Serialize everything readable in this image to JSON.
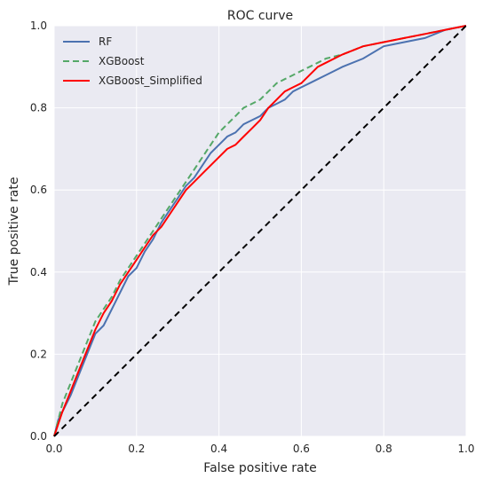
{
  "chart_data": {
    "type": "line",
    "title": "ROC curve",
    "xlabel": "False positive rate",
    "ylabel": "True positive rate",
    "xlim": [
      0,
      1
    ],
    "ylim": [
      0,
      1
    ],
    "xticks": [
      "0.0",
      "0.2",
      "0.4",
      "0.6",
      "0.8",
      "1.0"
    ],
    "yticks": [
      "0.0",
      "0.2",
      "0.4",
      "0.6",
      "0.8",
      "1.0"
    ],
    "grid": true,
    "legend_position": "top-left",
    "background": "#EAEAF2",
    "series": [
      {
        "name": "RF",
        "color": "#4C72B0",
        "dash": "solid",
        "x": [
          0,
          0.01,
          0.02,
          0.04,
          0.06,
          0.08,
          0.1,
          0.12,
          0.14,
          0.16,
          0.18,
          0.2,
          0.22,
          0.24,
          0.26,
          0.28,
          0.3,
          0.32,
          0.34,
          0.36,
          0.38,
          0.4,
          0.42,
          0.44,
          0.46,
          0.48,
          0.5,
          0.52,
          0.54,
          0.56,
          0.58,
          0.6,
          0.62,
          0.64,
          0.66,
          0.7,
          0.75,
          0.8,
          0.85,
          0.9,
          0.95,
          1.0
        ],
        "y": [
          0,
          0.04,
          0.06,
          0.1,
          0.15,
          0.2,
          0.25,
          0.27,
          0.31,
          0.35,
          0.39,
          0.41,
          0.45,
          0.48,
          0.52,
          0.55,
          0.58,
          0.61,
          0.63,
          0.66,
          0.69,
          0.71,
          0.73,
          0.74,
          0.76,
          0.77,
          0.78,
          0.8,
          0.81,
          0.82,
          0.84,
          0.85,
          0.86,
          0.87,
          0.88,
          0.9,
          0.92,
          0.95,
          0.96,
          0.97,
          0.99,
          1.0
        ]
      },
      {
        "name": "XGBoost",
        "color": "#55A868",
        "dash": "dashed",
        "x": [
          0,
          0.01,
          0.02,
          0.04,
          0.06,
          0.08,
          0.1,
          0.12,
          0.14,
          0.16,
          0.18,
          0.2,
          0.22,
          0.24,
          0.26,
          0.28,
          0.3,
          0.32,
          0.34,
          0.36,
          0.38,
          0.4,
          0.42,
          0.44,
          0.46,
          0.48,
          0.5,
          0.52,
          0.54,
          0.56,
          0.58,
          0.6,
          0.62,
          0.64,
          0.66,
          0.7,
          0.75,
          0.8,
          0.85,
          0.9,
          0.95,
          1.0
        ],
        "y": [
          0,
          0.04,
          0.08,
          0.13,
          0.18,
          0.23,
          0.28,
          0.31,
          0.34,
          0.38,
          0.41,
          0.44,
          0.47,
          0.5,
          0.53,
          0.56,
          0.59,
          0.62,
          0.65,
          0.68,
          0.71,
          0.74,
          0.76,
          0.78,
          0.8,
          0.81,
          0.82,
          0.84,
          0.86,
          0.87,
          0.88,
          0.89,
          0.9,
          0.91,
          0.92,
          0.93,
          0.95,
          0.96,
          0.97,
          0.98,
          0.99,
          1.0
        ]
      },
      {
        "name": "XGBoost_Simplified",
        "color": "#FF0000",
        "dash": "solid",
        "x": [
          0,
          0.01,
          0.02,
          0.04,
          0.06,
          0.08,
          0.1,
          0.12,
          0.14,
          0.16,
          0.18,
          0.2,
          0.22,
          0.24,
          0.26,
          0.28,
          0.3,
          0.32,
          0.34,
          0.36,
          0.38,
          0.4,
          0.42,
          0.44,
          0.46,
          0.48,
          0.5,
          0.52,
          0.54,
          0.56,
          0.58,
          0.6,
          0.62,
          0.64,
          0.66,
          0.7,
          0.75,
          0.8,
          0.85,
          0.9,
          0.95,
          1.0
        ],
        "y": [
          0,
          0.03,
          0.06,
          0.11,
          0.16,
          0.21,
          0.26,
          0.3,
          0.33,
          0.37,
          0.4,
          0.43,
          0.46,
          0.49,
          0.51,
          0.54,
          0.57,
          0.6,
          0.62,
          0.64,
          0.66,
          0.68,
          0.7,
          0.71,
          0.73,
          0.75,
          0.77,
          0.8,
          0.82,
          0.84,
          0.85,
          0.86,
          0.88,
          0.9,
          0.91,
          0.93,
          0.95,
          0.96,
          0.97,
          0.98,
          0.99,
          1.0
        ]
      },
      {
        "color": "#000000",
        "dash": "dashed",
        "x": [
          0,
          1
        ],
        "y": [
          0,
          1
        ]
      }
    ]
  }
}
